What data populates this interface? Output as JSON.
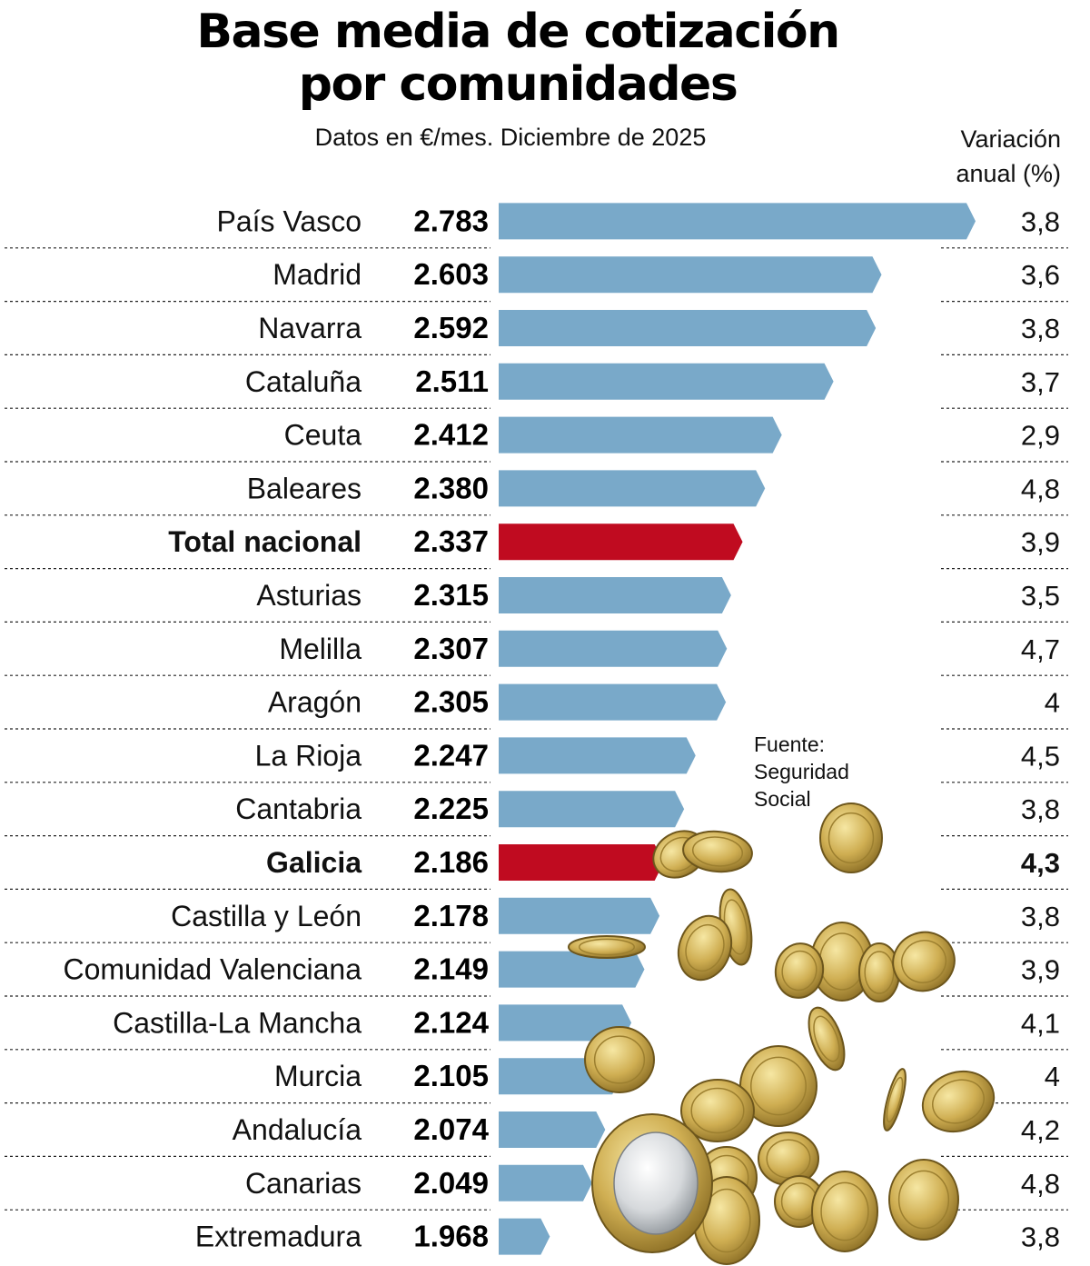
{
  "title_line1": "Base media de cotización",
  "title_line2": "por comunidades",
  "subtitle": "Datos en €/mes. Diciembre de 2025",
  "variation_header_line1": "Variación",
  "variation_header_line2": "anual (%)",
  "source_line1": "Fuente:",
  "source_line2": "Seguridad",
  "source_line3": "Social",
  "colors": {
    "bar": "#79a9c9",
    "highlight": "#c00b20",
    "text": "#111111"
  },
  "illustration": "falling-euro-coins",
  "chart_data": {
    "type": "bar",
    "orientation": "horizontal",
    "title": "Base media de cotización por comunidades",
    "subtitle": "Datos en €/mes. Diciembre de 2025",
    "unit": "€/mes",
    "categories": [
      "País Vasco",
      "Madrid",
      "Navarra",
      "Cataluña",
      "Ceuta",
      "Baleares",
      "Total nacional",
      "Asturias",
      "Melilla",
      "Aragón",
      "La Rioja",
      "Cantabria",
      "Galicia",
      "Castilla y León",
      "Comunidad Valenciana",
      "Castilla-La Mancha",
      "Murcia",
      "Andalucía",
      "Canarias",
      "Extremadura"
    ],
    "values": [
      2783,
      2603,
      2592,
      2511,
      2412,
      2380,
      2337,
      2315,
      2307,
      2305,
      2247,
      2225,
      2186,
      2178,
      2149,
      2124,
      2105,
      2074,
      2049,
      1968
    ],
    "value_labels": [
      "2.783",
      "2.603",
      "2.592",
      "2.511",
      "2.412",
      "2.380",
      "2.337",
      "2.315",
      "2.307",
      "2.305",
      "2.247",
      "2.225",
      "2.186",
      "2.178",
      "2.149",
      "2.124",
      "2.105",
      "2.074",
      "2.049",
      "1.968"
    ],
    "variation_header": "Variación anual (%)",
    "variation": [
      "3,8",
      "3,6",
      "3,8",
      "3,7",
      "2,9",
      "4,8",
      "3,9",
      "3,5",
      "4,7",
      "4",
      "4,5",
      "3,8",
      "4,3",
      "3,8",
      "3,9",
      "4,1",
      "4",
      "4,2",
      "4,8",
      "3,8"
    ],
    "highlighted": [
      "Total nacional",
      "Galicia"
    ],
    "bold_variation": [
      "Galicia"
    ],
    "xlim": [
      1870,
      2783
    ]
  }
}
